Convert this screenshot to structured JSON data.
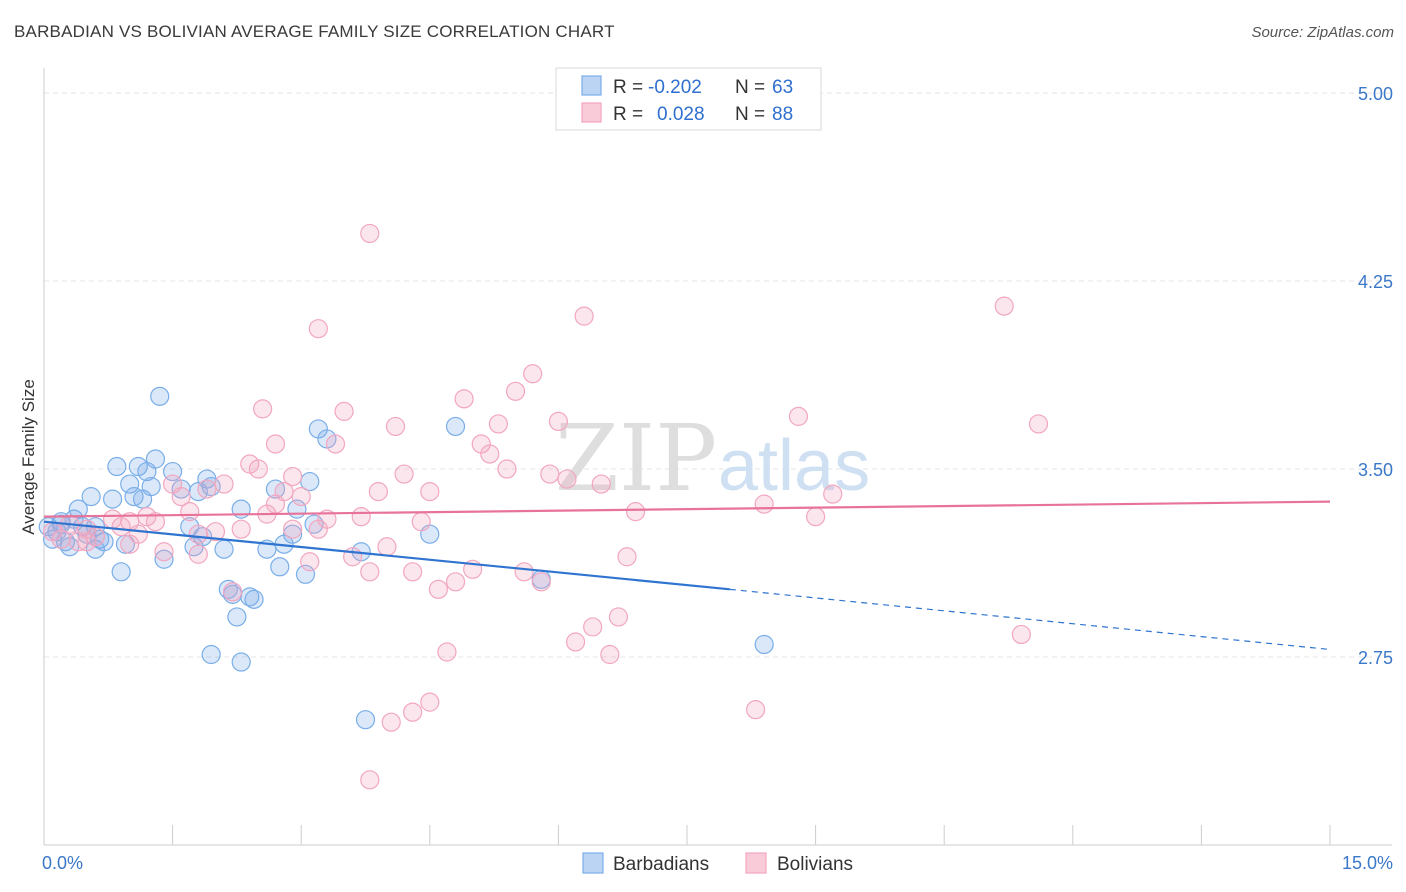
{
  "title": "BARBADIAN VS BOLIVIAN AVERAGE FAMILY SIZE CORRELATION CHART",
  "source": "Source: ZipAtlas.com",
  "watermark": {
    "part1": "ZIP",
    "part2": "atlas"
  },
  "chart_data": {
    "type": "scatter",
    "title": "BARBADIAN VS BOLIVIAN AVERAGE FAMILY SIZE CORRELATION CHART",
    "xlabel": "",
    "ylabel": "Average Family Size",
    "xlim": [
      0,
      15
    ],
    "ylim": [
      2.0,
      5.1
    ],
    "x_tick_labels": [
      "0.0%",
      "15.0%"
    ],
    "y_ticks": [
      2.75,
      3.5,
      4.25,
      5.0
    ],
    "y_tick_labels": [
      "2.75",
      "3.50",
      "4.25",
      "5.00"
    ],
    "grid": true,
    "legend_position": "bottom",
    "stats_box": [
      {
        "r_label": "R =",
        "r_value": "-0.202",
        "n_label": "N =",
        "n_value": "63"
      },
      {
        "r_label": "R =",
        "r_value": "0.028",
        "n_label": "N =",
        "n_value": "88"
      }
    ],
    "series": [
      {
        "name": "Barbadians",
        "color": "#7aaee8",
        "line_color": "#2f74d0",
        "trend": {
          "x0": 0,
          "y0": 3.29,
          "x1": 8.0,
          "y1": 3.02,
          "dashed_to_x": 15,
          "dashed_y": 2.78
        },
        "points": [
          [
            0.05,
            3.27
          ],
          [
            0.1,
            3.22
          ],
          [
            0.15,
            3.25
          ],
          [
            0.2,
            3.28
          ],
          [
            0.25,
            3.21
          ],
          [
            0.3,
            3.19
          ],
          [
            0.35,
            3.3
          ],
          [
            0.4,
            3.34
          ],
          [
            0.45,
            3.27
          ],
          [
            0.5,
            3.24
          ],
          [
            0.55,
            3.39
          ],
          [
            0.6,
            3.18
          ],
          [
            0.65,
            3.22
          ],
          [
            0.7,
            3.21
          ],
          [
            0.8,
            3.38
          ],
          [
            0.85,
            3.51
          ],
          [
            0.9,
            3.09
          ],
          [
            0.95,
            3.2
          ],
          [
            1.0,
            3.44
          ],
          [
            1.05,
            3.39
          ],
          [
            1.1,
            3.51
          ],
          [
            1.15,
            3.38
          ],
          [
            1.2,
            3.49
          ],
          [
            1.25,
            3.43
          ],
          [
            1.3,
            3.54
          ],
          [
            1.35,
            3.79
          ],
          [
            1.4,
            3.14
          ],
          [
            1.5,
            3.49
          ],
          [
            1.6,
            3.42
          ],
          [
            1.7,
            3.27
          ],
          [
            1.75,
            3.19
          ],
          [
            1.8,
            3.41
          ],
          [
            1.85,
            3.23
          ],
          [
            1.9,
            3.46
          ],
          [
            1.95,
            3.43
          ],
          [
            2.1,
            3.18
          ],
          [
            2.15,
            3.02
          ],
          [
            2.2,
            3.0
          ],
          [
            2.25,
            2.91
          ],
          [
            2.3,
            3.34
          ],
          [
            2.4,
            2.99
          ],
          [
            2.45,
            2.98
          ],
          [
            2.6,
            3.18
          ],
          [
            2.7,
            3.42
          ],
          [
            2.75,
            3.11
          ],
          [
            2.8,
            3.2
          ],
          [
            2.9,
            3.24
          ],
          [
            2.95,
            3.34
          ],
          [
            3.1,
            3.45
          ],
          [
            3.15,
            3.28
          ],
          [
            3.2,
            3.66
          ],
          [
            3.3,
            3.62
          ],
          [
            3.05,
            3.08
          ],
          [
            3.7,
            3.17
          ],
          [
            3.75,
            2.5
          ],
          [
            4.5,
            3.24
          ],
          [
            4.8,
            3.67
          ],
          [
            5.8,
            3.06
          ],
          [
            8.4,
            2.8
          ],
          [
            1.95,
            2.76
          ],
          [
            2.3,
            2.73
          ],
          [
            0.2,
            3.29
          ],
          [
            0.6,
            3.27
          ]
        ]
      },
      {
        "name": "Bolivians",
        "color": "#f2a6c0",
        "line_color": "#e8739a",
        "trend": {
          "x0": 0,
          "y0": 3.31,
          "x1": 15,
          "y1": 3.37
        },
        "points": [
          [
            0.1,
            3.25
          ],
          [
            0.2,
            3.22
          ],
          [
            0.3,
            3.28
          ],
          [
            0.4,
            3.21
          ],
          [
            0.5,
            3.26
          ],
          [
            0.6,
            3.23
          ],
          [
            0.8,
            3.3
          ],
          [
            0.9,
            3.27
          ],
          [
            1.0,
            3.2
          ],
          [
            1.1,
            3.24
          ],
          [
            1.2,
            3.31
          ],
          [
            1.3,
            3.29
          ],
          [
            1.4,
            3.17
          ],
          [
            1.5,
            3.44
          ],
          [
            1.6,
            3.39
          ],
          [
            1.7,
            3.33
          ],
          [
            1.8,
            3.16
          ],
          [
            1.9,
            3.42
          ],
          [
            2.0,
            3.25
          ],
          [
            2.1,
            3.44
          ],
          [
            2.2,
            3.01
          ],
          [
            2.3,
            3.26
          ],
          [
            2.4,
            3.52
          ],
          [
            2.5,
            3.5
          ],
          [
            2.6,
            3.32
          ],
          [
            2.7,
            3.36
          ],
          [
            2.8,
            3.41
          ],
          [
            2.9,
            3.47
          ],
          [
            3.0,
            3.39
          ],
          [
            3.1,
            3.13
          ],
          [
            3.2,
            3.26
          ],
          [
            3.3,
            3.3
          ],
          [
            3.4,
            3.6
          ],
          [
            3.5,
            3.73
          ],
          [
            3.6,
            3.15
          ],
          [
            3.7,
            3.31
          ],
          [
            3.8,
            3.09
          ],
          [
            3.9,
            3.41
          ],
          [
            4.0,
            3.19
          ],
          [
            4.1,
            3.67
          ],
          [
            4.2,
            3.48
          ],
          [
            4.3,
            3.09
          ],
          [
            4.4,
            3.29
          ],
          [
            4.5,
            3.41
          ],
          [
            4.6,
            3.02
          ],
          [
            4.7,
            2.77
          ],
          [
            4.8,
            3.05
          ],
          [
            4.9,
            3.78
          ],
          [
            5.0,
            3.1
          ],
          [
            5.1,
            3.6
          ],
          [
            5.2,
            3.56
          ],
          [
            5.3,
            3.68
          ],
          [
            5.4,
            3.5
          ],
          [
            5.5,
            3.81
          ],
          [
            5.6,
            3.09
          ],
          [
            5.7,
            3.88
          ],
          [
            5.8,
            3.05
          ],
          [
            5.9,
            3.48
          ],
          [
            6.0,
            3.69
          ],
          [
            6.1,
            3.46
          ],
          [
            6.2,
            2.81
          ],
          [
            6.3,
            4.11
          ],
          [
            6.4,
            2.87
          ],
          [
            6.5,
            3.44
          ],
          [
            6.6,
            2.76
          ],
          [
            6.7,
            2.91
          ],
          [
            6.8,
            3.15
          ],
          [
            6.9,
            3.33
          ],
          [
            3.8,
            2.26
          ],
          [
            4.05,
            2.49
          ],
          [
            4.3,
            2.53
          ],
          [
            4.5,
            2.57
          ],
          [
            8.3,
            2.54
          ],
          [
            8.4,
            3.36
          ],
          [
            8.8,
            3.71
          ],
          [
            9.0,
            3.31
          ],
          [
            9.2,
            3.4
          ],
          [
            11.2,
            4.15
          ],
          [
            11.4,
            2.84
          ],
          [
            11.6,
            3.68
          ],
          [
            3.8,
            4.44
          ],
          [
            3.2,
            4.06
          ],
          [
            2.55,
            3.74
          ],
          [
            2.7,
            3.6
          ],
          [
            0.5,
            3.21
          ],
          [
            1.0,
            3.29
          ],
          [
            1.8,
            3.24
          ],
          [
            2.9,
            3.26
          ]
        ]
      }
    ]
  }
}
